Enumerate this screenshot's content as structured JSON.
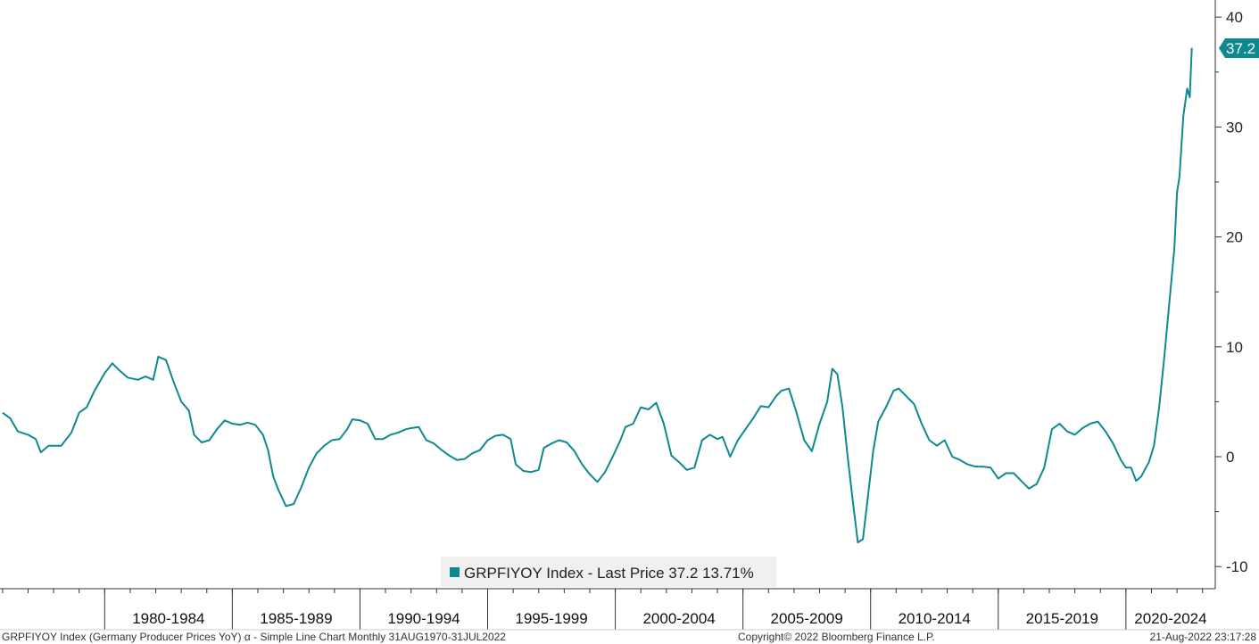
{
  "colors": {
    "line": "#0e8a8e",
    "badge": "#0e8a8e",
    "axis": "#333333",
    "legend_bg": "#f0f0f0"
  },
  "legend": {
    "text": "GRPFIYOY Index - Last Price 37.2  13.71%"
  },
  "footer": {
    "left": "GRPFIYOY Index (Germany Producer Prices YoY) α - Simple Line Chart  Monthly 31AUG1970-31JUL2022",
    "center": "Copyright© 2022 Bloomberg Finance L.P.",
    "right": "21-Aug-2022 23:17:28"
  },
  "chart_data": {
    "type": "line",
    "title": "",
    "xlabel": "",
    "ylabel": "",
    "x_range": [
      1975.9,
      2023.5
    ],
    "ylim": [
      -12,
      42
    ],
    "y_ticks": [
      "-10",
      "0",
      "10",
      "20",
      "30",
      "40"
    ],
    "y_tick_values": [
      -10,
      0,
      10,
      20,
      30,
      40
    ],
    "x_categories": [
      "1980-1984",
      "1985-1989",
      "1990-1994",
      "1995-1999",
      "2000-2004",
      "2005-2009",
      "2010-2014",
      "2015-2019",
      "2020-2024"
    ],
    "x_category_starts": [
      1980,
      1985,
      1990,
      1995,
      2000,
      2005,
      2010,
      2015,
      2020
    ],
    "last_value_label": "37.2",
    "series": [
      {
        "name": "GRPFIYOY Index",
        "points": [
          [
            1976.0,
            4.0
          ],
          [
            1976.3,
            3.5
          ],
          [
            1976.6,
            2.3
          ],
          [
            1977.0,
            2.0
          ],
          [
            1977.3,
            1.6
          ],
          [
            1977.5,
            0.4
          ],
          [
            1977.8,
            1.0
          ],
          [
            1978.3,
            1.0
          ],
          [
            1978.7,
            2.2
          ],
          [
            1979.0,
            4.0
          ],
          [
            1979.3,
            4.5
          ],
          [
            1979.6,
            6.0
          ],
          [
            1980.0,
            7.6
          ],
          [
            1980.3,
            8.5
          ],
          [
            1980.6,
            7.8
          ],
          [
            1980.9,
            7.2
          ],
          [
            1981.3,
            7.0
          ],
          [
            1981.6,
            7.3
          ],
          [
            1981.9,
            7.0
          ],
          [
            1982.1,
            9.1
          ],
          [
            1982.4,
            8.8
          ],
          [
            1982.7,
            6.8
          ],
          [
            1983.0,
            5.0
          ],
          [
            1983.3,
            4.2
          ],
          [
            1983.5,
            2.0
          ],
          [
            1983.8,
            1.3
          ],
          [
            1984.1,
            1.5
          ],
          [
            1984.4,
            2.5
          ],
          [
            1984.7,
            3.3
          ],
          [
            1985.0,
            3.0
          ],
          [
            1985.3,
            2.9
          ],
          [
            1985.6,
            3.1
          ],
          [
            1985.9,
            2.9
          ],
          [
            1986.2,
            2.0
          ],
          [
            1986.4,
            0.6
          ],
          [
            1986.6,
            -1.8
          ],
          [
            1986.8,
            -3.0
          ],
          [
            1987.1,
            -4.5
          ],
          [
            1987.4,
            -4.3
          ],
          [
            1987.7,
            -2.8
          ],
          [
            1988.0,
            -1.0
          ],
          [
            1988.3,
            0.3
          ],
          [
            1988.6,
            1.0
          ],
          [
            1988.9,
            1.5
          ],
          [
            1989.2,
            1.6
          ],
          [
            1989.5,
            2.5
          ],
          [
            1989.7,
            3.4
          ],
          [
            1990.0,
            3.3
          ],
          [
            1990.3,
            3.0
          ],
          [
            1990.6,
            1.6
          ],
          [
            1990.9,
            1.6
          ],
          [
            1991.2,
            2.0
          ],
          [
            1991.5,
            2.2
          ],
          [
            1991.8,
            2.5
          ],
          [
            1992.0,
            2.6
          ],
          [
            1992.3,
            2.7
          ],
          [
            1992.6,
            1.5
          ],
          [
            1992.9,
            1.2
          ],
          [
            1993.2,
            0.6
          ],
          [
            1993.5,
            0.1
          ],
          [
            1993.8,
            -0.3
          ],
          [
            1994.1,
            -0.2
          ],
          [
            1994.4,
            0.3
          ],
          [
            1994.7,
            0.6
          ],
          [
            1995.0,
            1.5
          ],
          [
            1995.3,
            1.9
          ],
          [
            1995.6,
            2.0
          ],
          [
            1995.9,
            1.6
          ],
          [
            1996.1,
            -0.7
          ],
          [
            1996.4,
            -1.3
          ],
          [
            1996.7,
            -1.4
          ],
          [
            1997.0,
            -1.2
          ],
          [
            1997.2,
            0.8
          ],
          [
            1997.5,
            1.2
          ],
          [
            1997.8,
            1.5
          ],
          [
            1998.1,
            1.3
          ],
          [
            1998.4,
            0.5
          ],
          [
            1998.7,
            -0.7
          ],
          [
            1999.0,
            -1.6
          ],
          [
            1999.3,
            -2.3
          ],
          [
            1999.6,
            -1.4
          ],
          [
            1999.9,
            0.0
          ],
          [
            2000.2,
            1.5
          ],
          [
            2000.4,
            2.7
          ],
          [
            2000.7,
            3.0
          ],
          [
            2001.0,
            4.5
          ],
          [
            2001.3,
            4.3
          ],
          [
            2001.6,
            4.9
          ],
          [
            2001.9,
            3.0
          ],
          [
            2002.2,
            0.1
          ],
          [
            2002.5,
            -0.5
          ],
          [
            2002.8,
            -1.2
          ],
          [
            2003.1,
            -1.0
          ],
          [
            2003.4,
            1.5
          ],
          [
            2003.7,
            2.0
          ],
          [
            2004.0,
            1.6
          ],
          [
            2004.2,
            1.8
          ],
          [
            2004.5,
            0.0
          ],
          [
            2004.8,
            1.5
          ],
          [
            2005.1,
            2.5
          ],
          [
            2005.4,
            3.5
          ],
          [
            2005.7,
            4.6
          ],
          [
            2006.0,
            4.5
          ],
          [
            2006.3,
            5.5
          ],
          [
            2006.5,
            6.0
          ],
          [
            2006.8,
            6.2
          ],
          [
            2007.1,
            4.0
          ],
          [
            2007.4,
            1.5
          ],
          [
            2007.7,
            0.5
          ],
          [
            2008.0,
            3.0
          ],
          [
            2008.3,
            5.0
          ],
          [
            2008.5,
            8.0
          ],
          [
            2008.7,
            7.5
          ],
          [
            2008.9,
            4.5
          ],
          [
            2009.1,
            0.0
          ],
          [
            2009.3,
            -4.0
          ],
          [
            2009.5,
            -7.8
          ],
          [
            2009.7,
            -7.5
          ],
          [
            2009.9,
            -3.5
          ],
          [
            2010.1,
            0.5
          ],
          [
            2010.3,
            3.2
          ],
          [
            2010.6,
            4.5
          ],
          [
            2010.9,
            6.0
          ],
          [
            2011.1,
            6.2
          ],
          [
            2011.4,
            5.5
          ],
          [
            2011.7,
            4.8
          ],
          [
            2012.0,
            3.0
          ],
          [
            2012.3,
            1.5
          ],
          [
            2012.6,
            1.0
          ],
          [
            2012.9,
            1.5
          ],
          [
            2013.2,
            0.0
          ],
          [
            2013.5,
            -0.3
          ],
          [
            2013.8,
            -0.7
          ],
          [
            2014.1,
            -0.9
          ],
          [
            2014.4,
            -0.9
          ],
          [
            2014.7,
            -1.0
          ],
          [
            2015.0,
            -2.0
          ],
          [
            2015.3,
            -1.5
          ],
          [
            2015.6,
            -1.5
          ],
          [
            2015.9,
            -2.2
          ],
          [
            2016.2,
            -2.9
          ],
          [
            2016.5,
            -2.5
          ],
          [
            2016.8,
            -1.0
          ],
          [
            2017.1,
            2.5
          ],
          [
            2017.4,
            3.0
          ],
          [
            2017.7,
            2.3
          ],
          [
            2018.0,
            2.0
          ],
          [
            2018.3,
            2.6
          ],
          [
            2018.6,
            3.0
          ],
          [
            2018.9,
            3.2
          ],
          [
            2019.2,
            2.3
          ],
          [
            2019.5,
            1.2
          ],
          [
            2019.8,
            -0.3
          ],
          [
            2020.0,
            -1.0
          ],
          [
            2020.2,
            -1.0
          ],
          [
            2020.4,
            -2.2
          ],
          [
            2020.6,
            -1.8
          ],
          [
            2020.9,
            -0.5
          ],
          [
            2021.1,
            1.0
          ],
          [
            2021.3,
            4.5
          ],
          [
            2021.5,
            9.0
          ],
          [
            2021.7,
            14.0
          ],
          [
            2021.9,
            19.0
          ],
          [
            2022.0,
            24.0
          ],
          [
            2022.1,
            25.5
          ],
          [
            2022.25,
            31.0
          ],
          [
            2022.4,
            33.5
          ],
          [
            2022.5,
            32.7
          ],
          [
            2022.58,
            37.2
          ]
        ]
      }
    ]
  }
}
